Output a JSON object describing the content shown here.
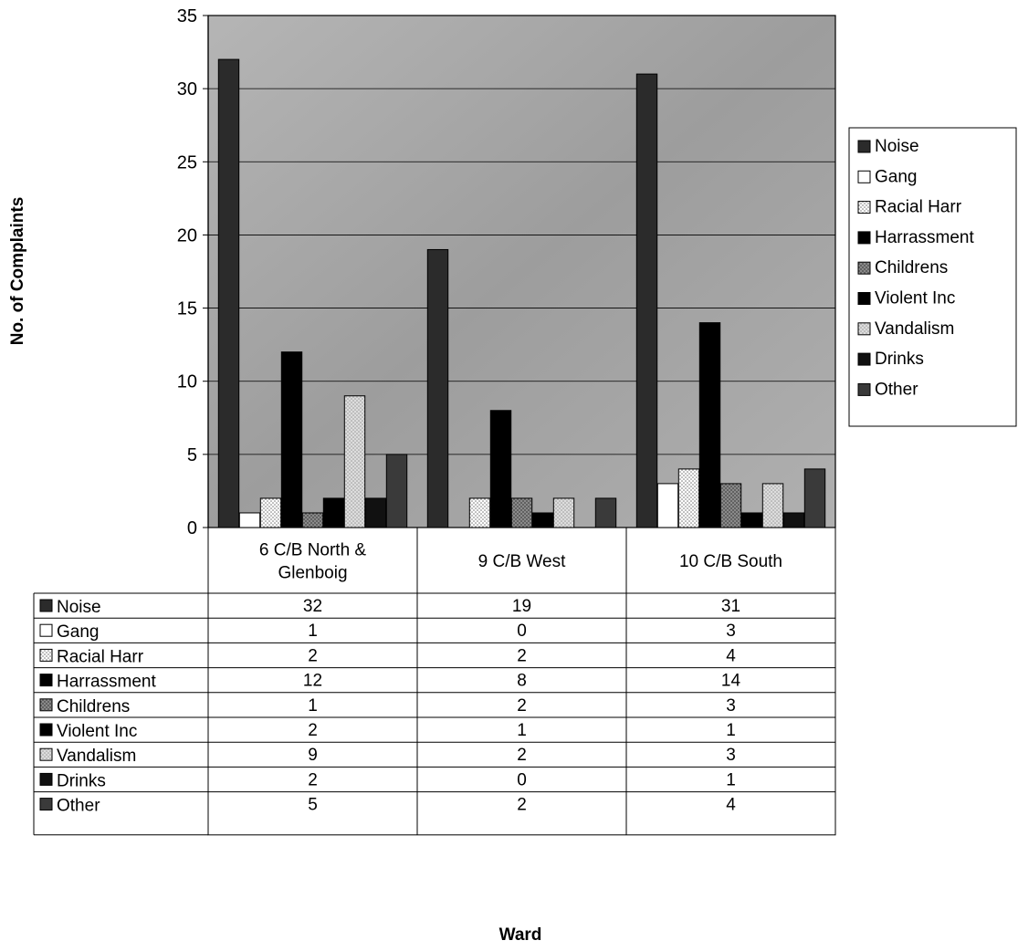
{
  "chart_data": {
    "type": "bar",
    "title": "",
    "xlabel": "Ward",
    "ylabel": "No. of Complaints",
    "ylim": [
      0,
      35
    ],
    "yticks": [
      0,
      5,
      10,
      15,
      20,
      25,
      30,
      35
    ],
    "grid": true,
    "legend_position": "right",
    "categories": [
      "6 C/B North & Glenboig",
      "9 C/B West",
      "10 C/B South"
    ],
    "category_lines": [
      [
        "6 C/B North &",
        "Glenboig"
      ],
      [
        "9 C/B West"
      ],
      [
        "10 C/B South"
      ]
    ],
    "series": [
      {
        "name": "Noise",
        "values": [
          32,
          19,
          31
        ],
        "color": "#2b2b2b",
        "pattern": "solid"
      },
      {
        "name": "Gang",
        "values": [
          1,
          0,
          3
        ],
        "color": "#ffffff",
        "pattern": "solid"
      },
      {
        "name": "Racial Harr",
        "values": [
          2,
          2,
          4
        ],
        "color": "#ffffff",
        "pattern": "dots"
      },
      {
        "name": "Harrassment",
        "values": [
          12,
          8,
          14
        ],
        "color": "#000000",
        "pattern": "solid"
      },
      {
        "name": "Childrens",
        "values": [
          1,
          2,
          3
        ],
        "color": "#7a7a7a",
        "pattern": "dots"
      },
      {
        "name": "Violent Inc",
        "values": [
          2,
          1,
          1
        ],
        "color": "#000000",
        "pattern": "solid"
      },
      {
        "name": "Vandalism",
        "values": [
          9,
          2,
          3
        ],
        "color": "#cfcfcf",
        "pattern": "dots"
      },
      {
        "name": "Drinks",
        "values": [
          2,
          0,
          1
        ],
        "color": "#111111",
        "pattern": "solid"
      },
      {
        "name": "Other",
        "values": [
          5,
          2,
          4
        ],
        "color": "#3a3a3a",
        "pattern": "solid"
      }
    ],
    "colors": {
      "plot_background": "#9a9a9a",
      "gridline": "#000000",
      "border": "#000000"
    }
  }
}
